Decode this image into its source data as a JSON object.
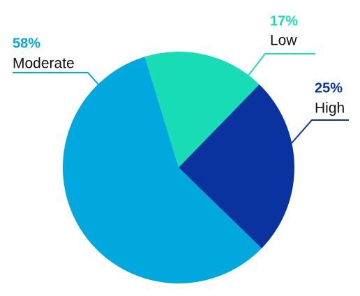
{
  "chart_data": {
    "type": "pie",
    "categories": [
      "Low",
      "High",
      "Moderate"
    ],
    "values": [
      17,
      25,
      58
    ],
    "value_labels": [
      "17%",
      "25%",
      "58%"
    ],
    "colors": [
      "#18dcb6",
      "#0a33a0",
      "#00a8de"
    ]
  }
}
